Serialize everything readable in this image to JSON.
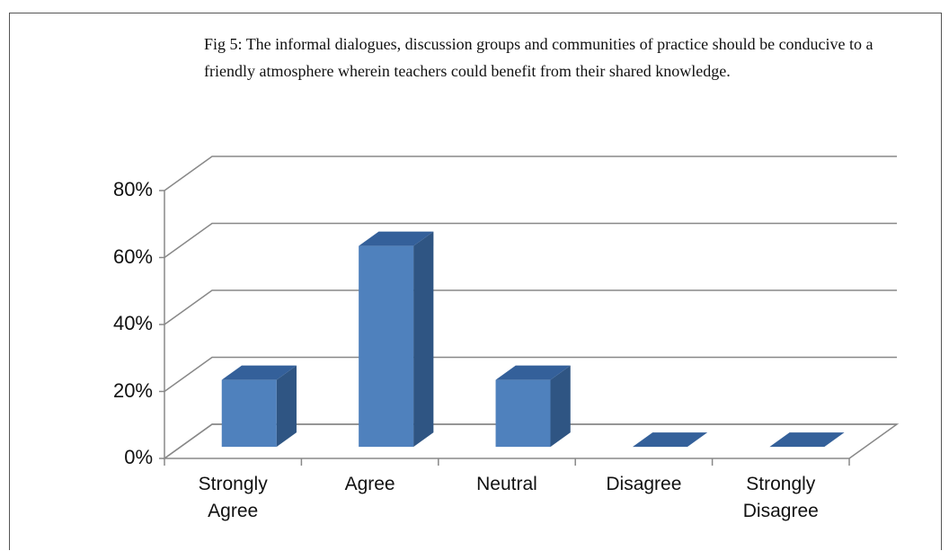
{
  "chart_data": {
    "type": "bar3d",
    "title": "Fig 5: The informal dialogues, discussion groups and communities of practice should be conducive to a friendly atmosphere wherein teachers could benefit from their shared knowledge.",
    "categories": [
      "Strongly Agree",
      "Agree",
      "Neutral",
      "Disagree",
      "Strongly Disagree"
    ],
    "values": [
      20,
      60,
      20,
      0,
      0
    ],
    "color": "#4f81bd",
    "ylim": [
      0,
      80
    ],
    "yticks": [
      {
        "value": 0,
        "label": "0%"
      },
      {
        "value": 20,
        "label": "20%"
      },
      {
        "value": 40,
        "label": "40%"
      },
      {
        "value": 60,
        "label": "60%"
      },
      {
        "value": 80,
        "label": "80%"
      }
    ],
    "grid": true
  }
}
